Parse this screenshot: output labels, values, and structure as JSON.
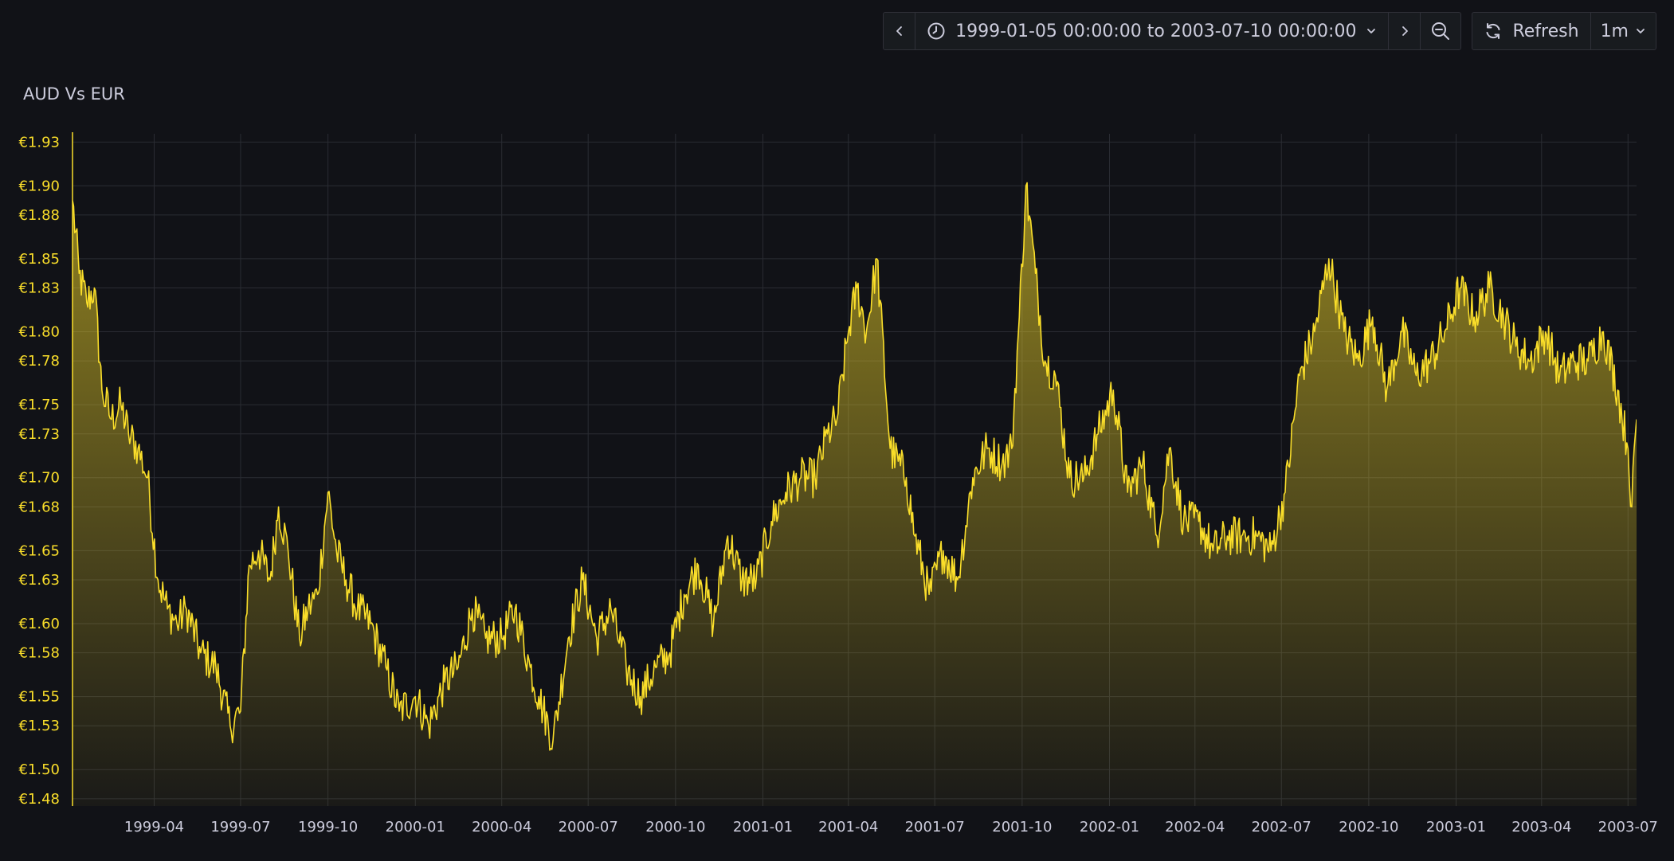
{
  "toolbar": {
    "time_range": "1999-01-05 00:00:00 to 2003-07-10 00:00:00",
    "refresh_label": "Refresh",
    "interval": "1m",
    "icons": [
      "chevron-left-icon",
      "clock-icon",
      "chevron-down-icon",
      "chevron-right-icon",
      "zoom-out-icon",
      "refresh-icon",
      "chevron-down-icon"
    ]
  },
  "panel": {
    "title": "AUD Vs EUR"
  },
  "colors": {
    "background": "#111217",
    "line": "#fade2a",
    "grid": "#2a2c33",
    "text": "#ccccdc",
    "y_tick_text": "#fade2a"
  },
  "chart_data": {
    "type": "area",
    "title": "AUD Vs EUR",
    "xlabel": "",
    "ylabel": "",
    "grid": true,
    "legend": "none",
    "y_tick_labels": [
      "€1.48",
      "€1.50",
      "€1.53",
      "€1.55",
      "€1.58",
      "€1.60",
      "€1.63",
      "€1.65",
      "€1.68",
      "€1.70",
      "€1.73",
      "€1.75",
      "€1.78",
      "€1.80",
      "€1.83",
      "€1.85",
      "€1.88",
      "€1.90",
      "€1.93"
    ],
    "ylim": [
      1.475,
      1.94
    ],
    "x_tick_labels": [
      "1999-04",
      "1999-07",
      "1999-10",
      "2000-01",
      "2000-04",
      "2000-07",
      "2000-10",
      "2001-01",
      "2001-04",
      "2001-07",
      "2001-10",
      "2002-01",
      "2002-04",
      "2002-07",
      "2002-10",
      "2003-01",
      "2003-04",
      "2003-07"
    ],
    "xlim": [
      "1999-01-05",
      "2003-07-10"
    ],
    "series": [
      {
        "x": [
          "1999-01-05",
          "1999-01-12",
          "1999-01-20",
          "1999-01-28",
          "1999-02-05",
          "1999-02-15",
          "1999-02-25",
          "1999-03-05",
          "1999-03-15",
          "1999-03-25",
          "1999-04-05",
          "1999-04-15",
          "1999-04-25",
          "1999-05-05",
          "1999-05-20",
          "1999-06-05",
          "1999-06-20",
          "1999-07-01",
          "1999-07-10",
          "1999-07-20",
          "1999-08-01",
          "1999-08-10",
          "1999-08-20",
          "1999-09-01",
          "1999-09-10",
          "1999-09-20",
          "1999-10-01",
          "1999-10-10",
          "1999-10-20",
          "1999-11-01",
          "1999-11-15",
          "1999-12-01",
          "1999-12-15",
          "2000-01-01",
          "2000-01-15",
          "2000-02-01",
          "2000-02-15",
          "2000-03-01",
          "2000-03-15",
          "2000-04-01",
          "2000-04-15",
          "2000-05-01",
          "2000-05-10",
          "2000-05-25",
          "2000-06-10",
          "2000-06-25",
          "2000-07-10",
          "2000-07-25",
          "2000-08-10",
          "2000-08-25",
          "2000-09-10",
          "2000-09-25",
          "2000-10-10",
          "2000-10-25",
          "2000-11-10",
          "2000-11-25",
          "2000-12-10",
          "2000-12-25",
          "2001-01-10",
          "2001-01-25",
          "2001-02-10",
          "2001-02-25",
          "2001-03-10",
          "2001-03-20",
          "2001-04-01",
          "2001-04-10",
          "2001-04-20",
          "2001-05-01",
          "2001-05-15",
          "2001-06-01",
          "2001-06-10",
          "2001-06-25",
          "2001-07-10",
          "2001-07-25",
          "2001-08-10",
          "2001-08-25",
          "2001-09-10",
          "2001-09-20",
          "2001-09-28",
          "2001-10-05",
          "2001-10-15",
          "2001-10-25",
          "2001-11-05",
          "2001-11-20",
          "2001-12-05",
          "2001-12-20",
          "2002-01-05",
          "2002-01-20",
          "2002-02-05",
          "2002-02-20",
          "2002-03-05",
          "2002-03-20",
          "2002-04-05",
          "2002-04-20",
          "2002-05-05",
          "2002-05-20",
          "2002-06-05",
          "2002-06-20",
          "2002-07-05",
          "2002-07-20",
          "2002-08-05",
          "2002-08-20",
          "2002-09-05",
          "2002-09-20",
          "2002-10-05",
          "2002-10-20",
          "2002-11-05",
          "2002-11-20",
          "2002-12-05",
          "2002-12-20",
          "2003-01-05",
          "2003-01-20",
          "2003-02-05",
          "2003-02-20",
          "2003-03-05",
          "2003-03-20",
          "2003-04-05",
          "2003-04-20",
          "2003-05-05",
          "2003-05-20",
          "2003-06-05",
          "2003-06-20",
          "2003-07-01",
          "2003-07-05",
          "2003-07-10"
        ],
        "values": [
          1.89,
          1.84,
          1.82,
          1.83,
          1.76,
          1.74,
          1.75,
          1.73,
          1.72,
          1.7,
          1.63,
          1.61,
          1.6,
          1.61,
          1.58,
          1.57,
          1.53,
          1.54,
          1.64,
          1.65,
          1.63,
          1.68,
          1.65,
          1.59,
          1.61,
          1.62,
          1.69,
          1.65,
          1.63,
          1.61,
          1.6,
          1.57,
          1.54,
          1.55,
          1.53,
          1.56,
          1.57,
          1.61,
          1.59,
          1.59,
          1.61,
          1.57,
          1.55,
          1.52,
          1.59,
          1.63,
          1.59,
          1.61,
          1.57,
          1.55,
          1.57,
          1.58,
          1.62,
          1.64,
          1.6,
          1.66,
          1.63,
          1.63,
          1.67,
          1.69,
          1.7,
          1.7,
          1.73,
          1.74,
          1.8,
          1.83,
          1.8,
          1.85,
          1.72,
          1.7,
          1.66,
          1.62,
          1.65,
          1.63,
          1.7,
          1.72,
          1.71,
          1.72,
          1.81,
          1.9,
          1.84,
          1.78,
          1.77,
          1.7,
          1.7,
          1.73,
          1.76,
          1.69,
          1.71,
          1.66,
          1.72,
          1.67,
          1.67,
          1.65,
          1.66,
          1.66,
          1.66,
          1.65,
          1.69,
          1.77,
          1.8,
          1.85,
          1.8,
          1.78,
          1.81,
          1.76,
          1.8,
          1.77,
          1.78,
          1.8,
          1.83,
          1.81,
          1.83,
          1.81,
          1.79,
          1.78,
          1.8,
          1.77,
          1.78,
          1.78,
          1.8,
          1.76,
          1.72,
          1.68,
          1.74
        ]
      }
    ]
  }
}
